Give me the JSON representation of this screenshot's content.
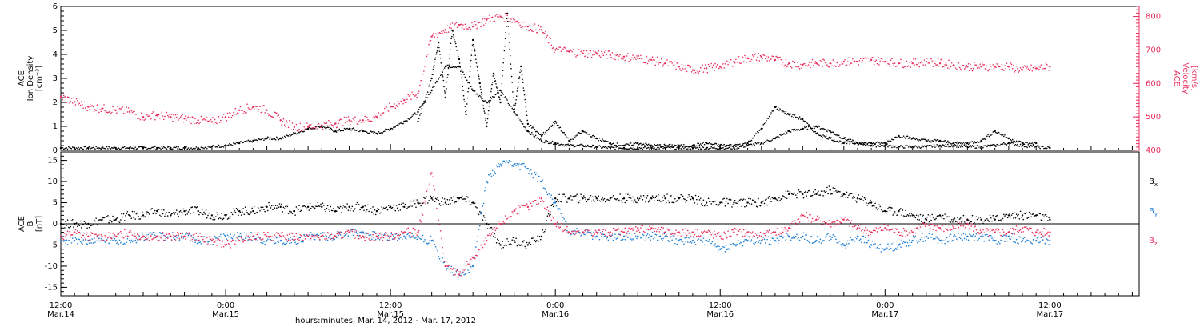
{
  "colors": {
    "black": "#000000",
    "pink": "#e8305c",
    "blue": "#1e7fd6",
    "axis": "#000000"
  },
  "chart_data": [
    {
      "type": "scatter",
      "panel": "top",
      "ylabel_lines": [
        "ACE",
        "Ion Density",
        "[cm⁻³]"
      ],
      "ylabel_right_lines": [
        "ACE",
        "Velocity",
        "[km/s]"
      ],
      "ylim": [
        0,
        6
      ],
      "y2lim": [
        400,
        830
      ],
      "yticks": [
        0,
        1,
        2,
        3,
        4,
        5,
        6
      ],
      "y2ticks": [
        400,
        500,
        600,
        700,
        800
      ],
      "series": [
        {
          "color": "black",
          "axis": "left",
          "x": [
            0,
            1,
            2,
            3,
            4,
            5,
            6,
            7,
            8,
            9,
            10,
            11,
            12,
            13,
            14,
            15,
            16,
            17,
            18,
            19,
            20,
            21,
            22,
            23,
            24,
            25,
            26,
            27,
            28,
            29,
            30,
            31,
            32,
            33,
            34,
            35,
            36,
            37,
            38,
            39,
            40,
            41,
            42,
            43,
            44,
            45,
            46,
            47,
            48,
            49,
            50,
            51,
            52,
            53,
            54,
            55,
            56,
            57,
            58,
            59,
            60,
            61,
            62,
            63,
            64,
            65,
            66,
            67,
            68,
            69,
            70,
            71,
            72
          ],
          "y": [
            0.1,
            0.1,
            0.1,
            0.1,
            0.1,
            0.1,
            0.1,
            0.1,
            0.1,
            0.1,
            0.1,
            0.15,
            0.2,
            0.3,
            0.4,
            0.5,
            0.5,
            0.7,
            0.9,
            1.0,
            0.8,
            0.9,
            0.8,
            0.7,
            0.9,
            1.2,
            1.6,
            2.5,
            3.5,
            3.5,
            2.5,
            2.0,
            2.5,
            1.6,
            0.8,
            0.4,
            0.3,
            0.2,
            0.2,
            0.15,
            0.1,
            0.1,
            0.1,
            0.1,
            0.1,
            0.1,
            0.1,
            0.1,
            0.1,
            0.1,
            0.2,
            0.3,
            0.5,
            0.8,
            0.9,
            1.0,
            0.8,
            0.5,
            0.3,
            0.2,
            0.2,
            0.15,
            0.15,
            0.15,
            0.2,
            0.2,
            0.15,
            0.15,
            0.2,
            0.3,
            0.2,
            0.15,
            0.1
          ]
        },
        {
          "color": "pink",
          "axis": "right",
          "x": [
            0,
            1,
            2,
            3,
            4,
            5,
            6,
            7,
            8,
            9,
            10,
            11,
            12,
            13,
            14,
            15,
            16,
            17,
            18,
            19,
            20,
            21,
            22,
            23,
            24,
            25,
            26,
            27,
            28,
            29,
            30,
            31,
            32,
            33,
            34,
            35,
            36,
            37,
            38,
            39,
            40,
            41,
            42,
            43,
            44,
            45,
            46,
            47,
            48,
            49,
            50,
            51,
            52,
            53,
            54,
            55,
            56,
            57,
            58,
            59,
            60,
            61,
            62,
            63,
            64,
            65,
            66,
            67,
            68,
            69,
            70,
            71,
            72
          ],
          "y": [
            560,
            545,
            530,
            525,
            520,
            515,
            500,
            505,
            500,
            495,
            490,
            485,
            500,
            520,
            530,
            520,
            490,
            470,
            470,
            475,
            480,
            490,
            490,
            500,
            530,
            550,
            570,
            740,
            760,
            775,
            770,
            790,
            800,
            790,
            770,
            760,
            700,
            695,
            690,
            690,
            685,
            680,
            675,
            670,
            660,
            650,
            640,
            645,
            650,
            665,
            675,
            680,
            670,
            660,
            655,
            660,
            660,
            665,
            665,
            670,
            665,
            660,
            660,
            665,
            660,
            655,
            650,
            650,
            650,
            650,
            640,
            645,
            650
          ]
        },
        {
          "color": "black",
          "axis": "left",
          "name": "scatter-spread",
          "x": [
            26,
            27,
            27.5,
            28,
            28.5,
            29,
            29.5,
            30,
            30.5,
            31,
            31.5,
            32,
            32.5,
            33,
            33.5,
            34,
            35,
            36,
            37,
            38,
            39,
            40,
            41,
            42,
            43,
            44,
            45,
            46,
            47,
            48,
            49,
            50,
            51,
            52,
            53,
            54,
            55,
            56,
            57,
            58,
            59,
            60,
            61,
            62,
            63,
            64,
            65,
            66,
            67,
            68,
            69,
            70,
            71
          ],
          "y": [
            1.2,
            3.0,
            4.5,
            2.2,
            5.0,
            3.8,
            1.5,
            4.6,
            2.8,
            1.0,
            3.2,
            2.0,
            5.7,
            1.6,
            3.5,
            1.1,
            0.6,
            1.2,
            0.4,
            0.8,
            0.5,
            0.3,
            0.2,
            0.3,
            0.2,
            0.2,
            0.2,
            0.2,
            0.3,
            0.2,
            0.2,
            0.3,
            0.9,
            1.8,
            1.5,
            1.3,
            0.7,
            0.5,
            0.3,
            0.3,
            0.3,
            0.3,
            0.6,
            0.5,
            0.4,
            0.4,
            0.3,
            0.3,
            0.4,
            0.8,
            0.5,
            0.3,
            0.3
          ]
        }
      ]
    },
    {
      "type": "scatter",
      "panel": "bottom",
      "ylabel_lines": [
        "ACE",
        "B",
        "[nT]"
      ],
      "ylim": [
        -17,
        17
      ],
      "yticks": [
        -15,
        -10,
        -5,
        0,
        5,
        10,
        15
      ],
      "legend": [
        {
          "label": "B",
          "sub": "x",
          "color": "black"
        },
        {
          "label": "B",
          "sub": "y",
          "color": "blue"
        },
        {
          "label": "B",
          "sub": "z",
          "color": "pink"
        }
      ],
      "series": [
        {
          "color": "black",
          "name": "Bx",
          "x": [
            0,
            1,
            2,
            3,
            4,
            5,
            6,
            7,
            8,
            9,
            10,
            11,
            12,
            13,
            14,
            15,
            16,
            17,
            18,
            19,
            20,
            21,
            22,
            23,
            24,
            25,
            26,
            27,
            28,
            29,
            30,
            31,
            32,
            33,
            34,
            35,
            36,
            37,
            38,
            39,
            40,
            41,
            42,
            43,
            44,
            45,
            46,
            47,
            48,
            49,
            50,
            51,
            52,
            53,
            54,
            55,
            56,
            57,
            58,
            59,
            60,
            61,
            62,
            63,
            64,
            65,
            66,
            67,
            68,
            69,
            70,
            71,
            72
          ],
          "y": [
            0,
            0,
            0,
            1,
            1,
            2,
            2,
            3,
            2,
            3,
            3,
            2,
            2,
            3,
            3,
            4,
            4,
            3,
            4,
            4,
            3,
            4,
            4,
            3,
            4,
            4,
            5,
            6,
            5,
            6,
            5,
            0,
            -5,
            -4,
            -5,
            -3,
            6,
            6,
            6,
            6,
            6,
            6,
            6,
            6,
            6,
            6,
            6,
            5,
            5,
            5,
            5,
            5,
            6,
            7,
            7,
            7,
            8,
            7,
            6,
            5,
            3,
            3,
            2,
            1,
            2,
            1,
            1,
            1,
            1,
            2,
            2,
            2,
            1
          ]
        },
        {
          "color": "blue",
          "name": "By",
          "x": [
            0,
            1,
            2,
            3,
            4,
            5,
            6,
            7,
            8,
            9,
            10,
            11,
            12,
            13,
            14,
            15,
            16,
            17,
            18,
            19,
            20,
            21,
            22,
            23,
            24,
            25,
            26,
            27,
            28,
            29,
            30,
            31,
            32,
            33,
            34,
            35,
            36,
            37,
            38,
            39,
            40,
            41,
            42,
            43,
            44,
            45,
            46,
            47,
            48,
            49,
            50,
            51,
            52,
            53,
            54,
            55,
            56,
            57,
            58,
            59,
            60,
            61,
            62,
            63,
            64,
            65,
            66,
            67,
            68,
            69,
            70,
            71,
            72
          ],
          "y": [
            -4,
            -4,
            -4,
            -4,
            -4,
            -4,
            -3,
            -3,
            -3,
            -3,
            -4,
            -4,
            -3,
            -3,
            -3,
            -4,
            -4,
            -4,
            -3,
            -3,
            -3,
            -2,
            -2,
            -3,
            -3,
            -3,
            -3,
            -4,
            -10,
            -12,
            -10,
            10,
            14,
            14,
            13,
            10,
            5,
            -2,
            -2,
            -3,
            -3,
            -3,
            -3,
            -3,
            -3,
            -4,
            -4,
            -4,
            -6,
            -5,
            -4,
            -4,
            -4,
            -3,
            -3,
            -4,
            -3,
            -5,
            -3,
            -5,
            -6,
            -5,
            -4,
            -3,
            -4,
            -3,
            -3,
            -3,
            -4,
            -3,
            -4,
            -4,
            -4
          ]
        },
        {
          "color": "pink",
          "name": "Bz",
          "x": [
            0,
            1,
            2,
            3,
            4,
            5,
            6,
            7,
            8,
            9,
            10,
            11,
            12,
            13,
            14,
            15,
            16,
            17,
            18,
            19,
            20,
            21,
            22,
            23,
            24,
            25,
            26,
            27,
            28,
            29,
            30,
            31,
            32,
            33,
            34,
            35,
            36,
            37,
            38,
            39,
            40,
            41,
            42,
            43,
            44,
            45,
            46,
            47,
            48,
            49,
            50,
            51,
            52,
            53,
            54,
            55,
            56,
            57,
            58,
            59,
            60,
            61,
            62,
            63,
            64,
            65,
            66,
            67,
            68,
            69,
            70,
            71,
            72
          ],
          "y": [
            -3,
            -2,
            -3,
            -3,
            -3,
            -2,
            -3,
            -3,
            -3,
            -3,
            -3,
            -4,
            -5,
            -4,
            -3,
            -3,
            -3,
            -3,
            -3,
            -3,
            -3,
            -2,
            -3,
            -3,
            -3,
            -2,
            -2,
            12,
            -10,
            -12,
            -8,
            -4,
            0,
            3,
            4,
            6,
            0,
            -2,
            -2,
            -2,
            -2,
            -2,
            -1,
            -1,
            -2,
            -2,
            -2,
            -2,
            -3,
            -2,
            -2,
            -3,
            -2,
            -1,
            2,
            1,
            0,
            1,
            -1,
            -2,
            -1,
            -2,
            -2,
            0,
            -1,
            -1,
            0,
            -2,
            -2,
            -2,
            -1,
            -2,
            -2
          ]
        }
      ]
    }
  ],
  "xaxis": {
    "ticks": [
      {
        "t": 0,
        "time": "12:00",
        "date": "Mar.14"
      },
      {
        "t": 12,
        "time": "0:00",
        "date": "Mar.15"
      },
      {
        "t": 24,
        "time": "12:00",
        "date": "Mar.15"
      },
      {
        "t": 36,
        "time": "0:00",
        "date": "Mar.16"
      },
      {
        "t": 48,
        "time": "12:00",
        "date": "Mar.16"
      },
      {
        "t": 60,
        "time": "0:00",
        "date": "Mar.17"
      },
      {
        "t": 72,
        "time": "12:00",
        "date": "Mar.17"
      }
    ],
    "xlim": [
      0,
      78.5
    ],
    "label": "hours:minutes, Mar. 14, 2012 - Mar. 17, 2012"
  }
}
